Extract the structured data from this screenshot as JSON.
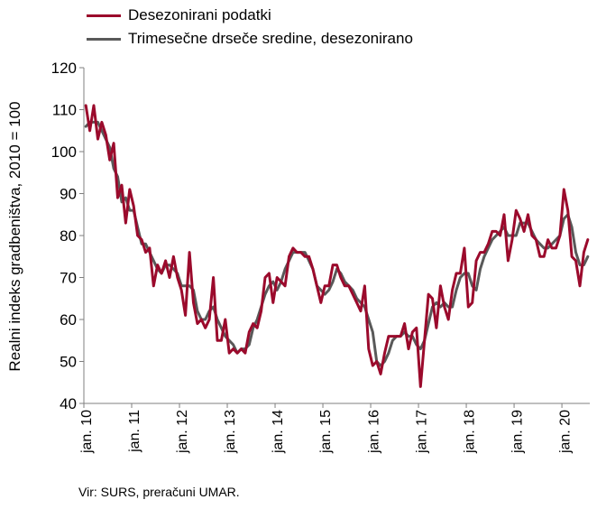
{
  "source": "Vir: SURS, preračuni UMAR.",
  "chart_data": {
    "type": "line",
    "ylabel": "Realni indeks gradbeništva, 2010 = 100",
    "xlabel": "",
    "ylim": [
      40,
      120
    ],
    "yticks": [
      40,
      50,
      60,
      70,
      80,
      90,
      100,
      110,
      120
    ],
    "xtick_labels": [
      "jan. 10",
      "jan. 11",
      "jan. 12",
      "jan. 13",
      "jan. 14",
      "jan. 15",
      "jan. 16",
      "jan. 17",
      "jan. 18",
      "jan. 19",
      "jan. 20"
    ],
    "x_start": "2010-01",
    "grid": false,
    "legend_position": "top-left",
    "colors": {
      "raw": "#9b0a2c",
      "avg": "#595959"
    },
    "series": [
      {
        "name": "Desezonirani podatki",
        "values": [
          111,
          105,
          111,
          103,
          107,
          104,
          98,
          102,
          89,
          92,
          83,
          91,
          87,
          80,
          79,
          76,
          77,
          68,
          73,
          71,
          74,
          70,
          75,
          70,
          67,
          61,
          76,
          64,
          59,
          60,
          58,
          60,
          70,
          55,
          55,
          60,
          52,
          53,
          52,
          53,
          52,
          57,
          59,
          58,
          62,
          70,
          71,
          64,
          70,
          69,
          68,
          75,
          77,
          76,
          76,
          75,
          75,
          72,
          68,
          64,
          68,
          68,
          73,
          73,
          70,
          68,
          68,
          66,
          64,
          62,
          68,
          53,
          49,
          50,
          47,
          52,
          56,
          56,
          56,
          56,
          59,
          53,
          57,
          58,
          44,
          55,
          66,
          65,
          58,
          68,
          63,
          60,
          67,
          71,
          71,
          77,
          63,
          64,
          74,
          76,
          76,
          78,
          81,
          81,
          80,
          85,
          74,
          79,
          86,
          84,
          81,
          85,
          80,
          79,
          75,
          75,
          79,
          77,
          77,
          80,
          91,
          86,
          75,
          74,
          68,
          76,
          79
        ],
        "color": "raw"
      },
      {
        "name": "Trimesečne drseče sredine, desezonirano",
        "values": [
          106,
          107,
          107,
          107,
          105,
          103,
          101,
          96,
          94,
          88,
          89,
          86,
          86,
          82,
          78,
          78,
          76,
          74,
          72,
          71,
          73,
          73,
          72,
          71,
          68,
          68,
          68,
          67,
          62,
          60,
          60,
          62,
          63,
          60,
          58,
          56,
          55,
          54,
          52,
          53,
          53,
          54,
          58,
          60,
          63,
          66,
          68,
          69,
          67,
          69,
          72,
          74,
          76,
          76,
          76,
          76,
          74,
          72,
          68,
          67,
          66,
          67,
          69,
          72,
          71,
          69,
          68,
          67,
          65,
          64,
          63,
          60,
          57,
          50,
          49,
          50,
          52,
          55,
          56,
          56,
          57,
          56,
          56,
          54,
          53,
          55,
          59,
          63,
          64,
          63,
          64,
          63,
          63,
          67,
          70,
          71,
          71,
          68,
          67,
          72,
          75,
          77,
          79,
          80,
          81,
          82,
          80,
          80,
          80,
          83,
          83,
          83,
          81,
          79,
          78,
          77,
          77,
          78,
          79,
          80,
          84,
          85,
          82,
          76,
          73,
          73,
          75
        ],
        "color": "avg"
      }
    ]
  }
}
